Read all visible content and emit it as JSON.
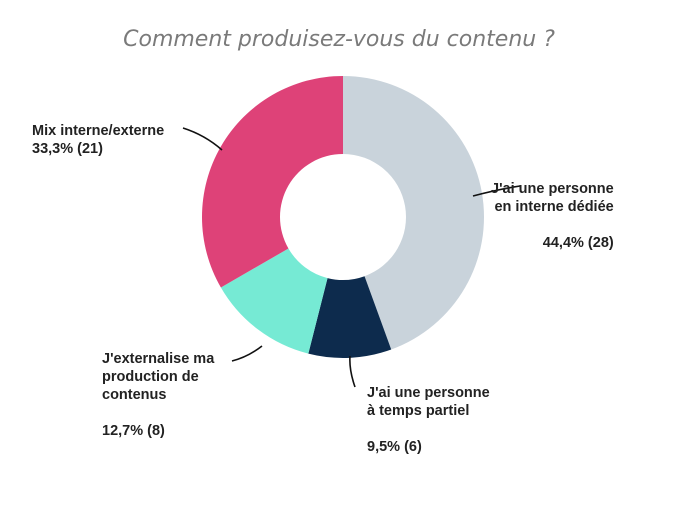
{
  "chart_data": {
    "type": "pie",
    "title": "Comment produisez-vous du contenu ?",
    "slices": [
      {
        "label_lines": [
          "J'ai une personne",
          "en interne dédiée"
        ],
        "value_label": "44,4% (28)",
        "percent": 44.4,
        "count": 28,
        "color": "#c9d3db"
      },
      {
        "label_lines": [
          "J'ai une personne",
          "à temps partiel"
        ],
        "value_label": "9,5% (6)",
        "percent": 9.5,
        "count": 6,
        "color": "#0d2b4d"
      },
      {
        "label_lines": [
          "J'externalise ma",
          "production de",
          "contenus"
        ],
        "value_label": "12,7% (8)",
        "percent": 12.7,
        "count": 8,
        "color": "#76ead4"
      },
      {
        "label_lines": [
          "Mix interne/externe"
        ],
        "value_label": "33,3% (21)",
        "percent": 33.3,
        "count": 21,
        "color": "#de4278"
      }
    ]
  }
}
